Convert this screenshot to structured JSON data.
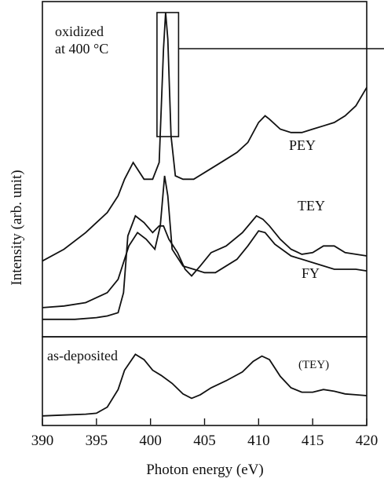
{
  "chart_data": {
    "type": "line",
    "xlabel": "Photon energy (eV)",
    "ylabel": "Intensity (arb. unit)",
    "xlim": [
      390,
      420
    ],
    "x_ticks": [
      390,
      395,
      400,
      405,
      410,
      415,
      420
    ],
    "y_scale": "arbitrary (stacked, offset curves)",
    "grid": false,
    "panels": [
      {
        "id": "top",
        "annotation": "oxidized\nat 400 °C",
        "highlight_x_range": [
          400.6,
          402.6
        ],
        "series": [
          {
            "name": "PEY",
            "values": [
              [
                390,
                0.225
              ],
              [
                392,
                0.26
              ],
              [
                394,
                0.31
              ],
              [
                396,
                0.37
              ],
              [
                397,
                0.42
              ],
              [
                397.6,
                0.47
              ],
              [
                398.4,
                0.52
              ],
              [
                399.4,
                0.47
              ],
              [
                400.2,
                0.47
              ],
              [
                400.8,
                0.52
              ],
              [
                401.2,
                0.86
              ],
              [
                401.4,
                0.97
              ],
              [
                401.6,
                0.89
              ],
              [
                401.9,
                0.6
              ],
              [
                402.3,
                0.48
              ],
              [
                403,
                0.47
              ],
              [
                404,
                0.47
              ],
              [
                405,
                0.49
              ],
              [
                406,
                0.51
              ],
              [
                407,
                0.53
              ],
              [
                408,
                0.55
              ],
              [
                409,
                0.58
              ],
              [
                410,
                0.64
              ],
              [
                410.6,
                0.66
              ],
              [
                411,
                0.65
              ],
              [
                412,
                0.62
              ],
              [
                413,
                0.61
              ],
              [
                414,
                0.61
              ],
              [
                415,
                0.62
              ],
              [
                416,
                0.63
              ],
              [
                417,
                0.64
              ],
              [
                418,
                0.66
              ],
              [
                419,
                0.69
              ],
              [
                420,
                0.745
              ]
            ]
          },
          {
            "name": "TEY",
            "values": [
              [
                390,
                0.085
              ],
              [
                392,
                0.09
              ],
              [
                394,
                0.1
              ],
              [
                396,
                0.13
              ],
              [
                397,
                0.17
              ],
              [
                398,
                0.27
              ],
              [
                398.8,
                0.31
              ],
              [
                399.6,
                0.29
              ],
              [
                400.4,
                0.26
              ],
              [
                400.9,
                0.33
              ],
              [
                401.3,
                0.48
              ],
              [
                401.6,
                0.42
              ],
              [
                402,
                0.26
              ],
              [
                403,
                0.21
              ],
              [
                404,
                0.2
              ],
              [
                405,
                0.19
              ],
              [
                406,
                0.19
              ],
              [
                407,
                0.21
              ],
              [
                408,
                0.23
              ],
              [
                409,
                0.27
              ],
              [
                410,
                0.315
              ],
              [
                410.6,
                0.31
              ],
              [
                411.5,
                0.275
              ],
              [
                413,
                0.24
              ],
              [
                415,
                0.22
              ],
              [
                417,
                0.2
              ],
              [
                419,
                0.2
              ],
              [
                420,
                0.195
              ]
            ]
          },
          {
            "name": "FY",
            "values": [
              [
                390,
                0.05
              ],
              [
                393,
                0.05
              ],
              [
                395,
                0.055
              ],
              [
                396,
                0.06
              ],
              [
                397,
                0.07
              ],
              [
                397.5,
                0.13
              ],
              [
                397.9,
                0.3
              ],
              [
                398.6,
                0.36
              ],
              [
                399.4,
                0.34
              ],
              [
                400.2,
                0.31
              ],
              [
                400.8,
                0.33
              ],
              [
                401.2,
                0.33
              ],
              [
                401.7,
                0.29
              ],
              [
                402.5,
                0.25
              ],
              [
                403.2,
                0.2
              ],
              [
                403.8,
                0.18
              ],
              [
                404.6,
                0.21
              ],
              [
                405.6,
                0.25
              ],
              [
                407,
                0.27
              ],
              [
                408.5,
                0.31
              ],
              [
                409.8,
                0.36
              ],
              [
                410.4,
                0.35
              ],
              [
                411,
                0.33
              ],
              [
                412,
                0.29
              ],
              [
                413,
                0.26
              ],
              [
                414,
                0.245
              ],
              [
                415,
                0.25
              ],
              [
                416,
                0.27
              ],
              [
                417,
                0.27
              ],
              [
                418,
                0.25
              ],
              [
                419,
                0.245
              ],
              [
                420,
                0.24
              ]
            ]
          }
        ]
      },
      {
        "id": "bottom",
        "annotation": "as-deposited",
        "series": [
          {
            "name": "(TEY)",
            "values": [
              [
                390,
                0.1
              ],
              [
                392,
                0.11
              ],
              [
                394,
                0.12
              ],
              [
                395,
                0.13
              ],
              [
                396,
                0.2
              ],
              [
                397,
                0.4
              ],
              [
                397.6,
                0.62
              ],
              [
                398.6,
                0.8
              ],
              [
                399.4,
                0.74
              ],
              [
                400.2,
                0.62
              ],
              [
                401,
                0.56
              ],
              [
                402,
                0.47
              ],
              [
                403,
                0.35
              ],
              [
                403.8,
                0.3
              ],
              [
                404.6,
                0.34
              ],
              [
                405.6,
                0.42
              ],
              [
                407,
                0.5
              ],
              [
                408.5,
                0.6
              ],
              [
                409.5,
                0.72
              ],
              [
                410.3,
                0.78
              ],
              [
                411,
                0.74
              ],
              [
                412,
                0.55
              ],
              [
                413,
                0.42
              ],
              [
                414,
                0.37
              ],
              [
                415,
                0.37
              ],
              [
                416,
                0.4
              ],
              [
                417,
                0.38
              ],
              [
                418,
                0.35
              ],
              [
                419,
                0.34
              ],
              [
                420,
                0.33
              ]
            ]
          }
        ]
      }
    ]
  }
}
